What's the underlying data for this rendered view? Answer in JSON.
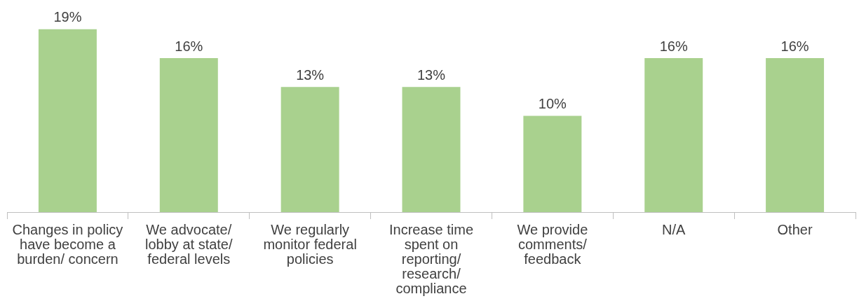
{
  "chart_data": {
    "type": "bar",
    "categories": [
      "Changes in policy have become a burden/ concern",
      "We advocate/ lobby at state/ federal levels",
      "We regularly monitor federal policies",
      "Increase time spent on reporting/ research/ compliance",
      "We provide comments/ feedback",
      "N/A",
      "Other"
    ],
    "values": [
      19,
      16,
      13,
      13,
      10,
      16,
      16
    ],
    "value_labels": [
      "19%",
      "16%",
      "13%",
      "13%",
      "10%",
      "16%",
      "16%"
    ],
    "color": "#a9d18e",
    "grid": false,
    "legend": false,
    "tick_labels": "x"
  }
}
